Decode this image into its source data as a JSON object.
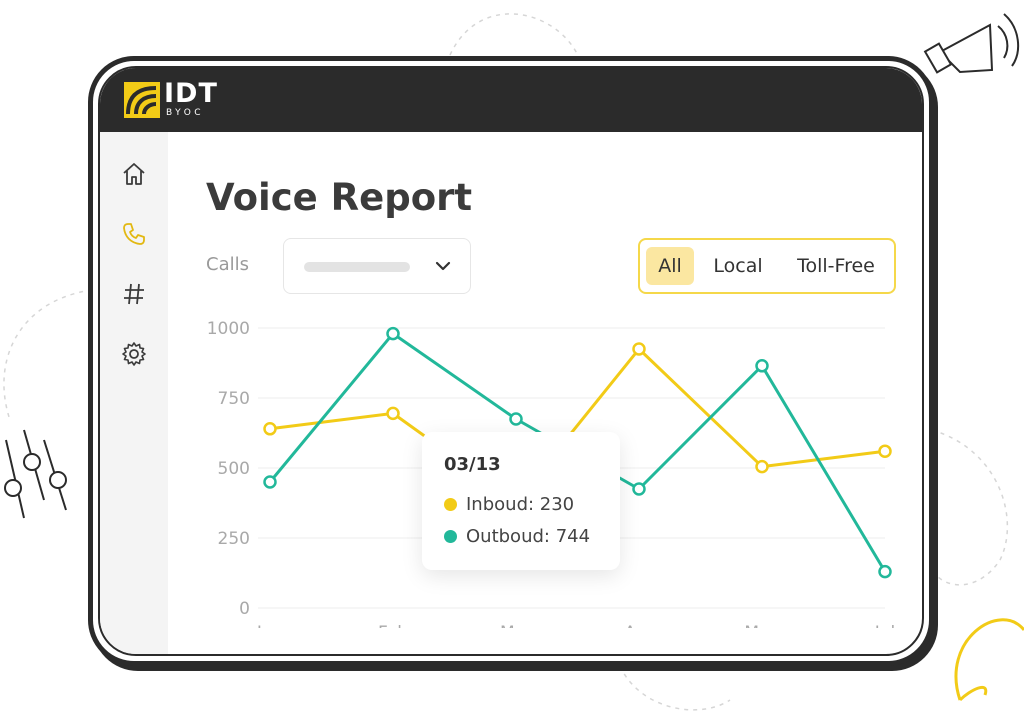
{
  "brand": {
    "logo": "IDT",
    "sub": "BYOC"
  },
  "page": {
    "title": "Voice Report"
  },
  "sidebar": {
    "items": [
      {
        "icon": "home-icon"
      },
      {
        "icon": "phone-icon",
        "active": true
      },
      {
        "icon": "hash-icon"
      },
      {
        "icon": "gear-icon"
      }
    ]
  },
  "filters": {
    "calls_label": "Calls",
    "segments": [
      "All",
      "Local",
      "Toll-Free"
    ],
    "selected": "All"
  },
  "colors": {
    "inbound": "#f2cb17",
    "outbound": "#22b89a",
    "dark": "#2b2b2b"
  },
  "tooltip": {
    "date": "03/13",
    "inbound_label": "Inboud: 230",
    "outbound_label": "Outboud: 744"
  },
  "chart_data": {
    "type": "line",
    "categories": [
      "Jan",
      "Feb",
      "Mar",
      "Apr",
      "May",
      "Jul"
    ],
    "ylim": [
      0,
      1000
    ],
    "yticks": [
      1000,
      750,
      500,
      250,
      0
    ],
    "grid": true,
    "series": [
      {
        "key": "inbound",
        "values": [
          640,
          695,
          380,
          925,
          505,
          560
        ]
      },
      {
        "key": "outbound",
        "values": [
          450,
          980,
          675,
          425,
          865,
          130
        ]
      }
    ]
  }
}
